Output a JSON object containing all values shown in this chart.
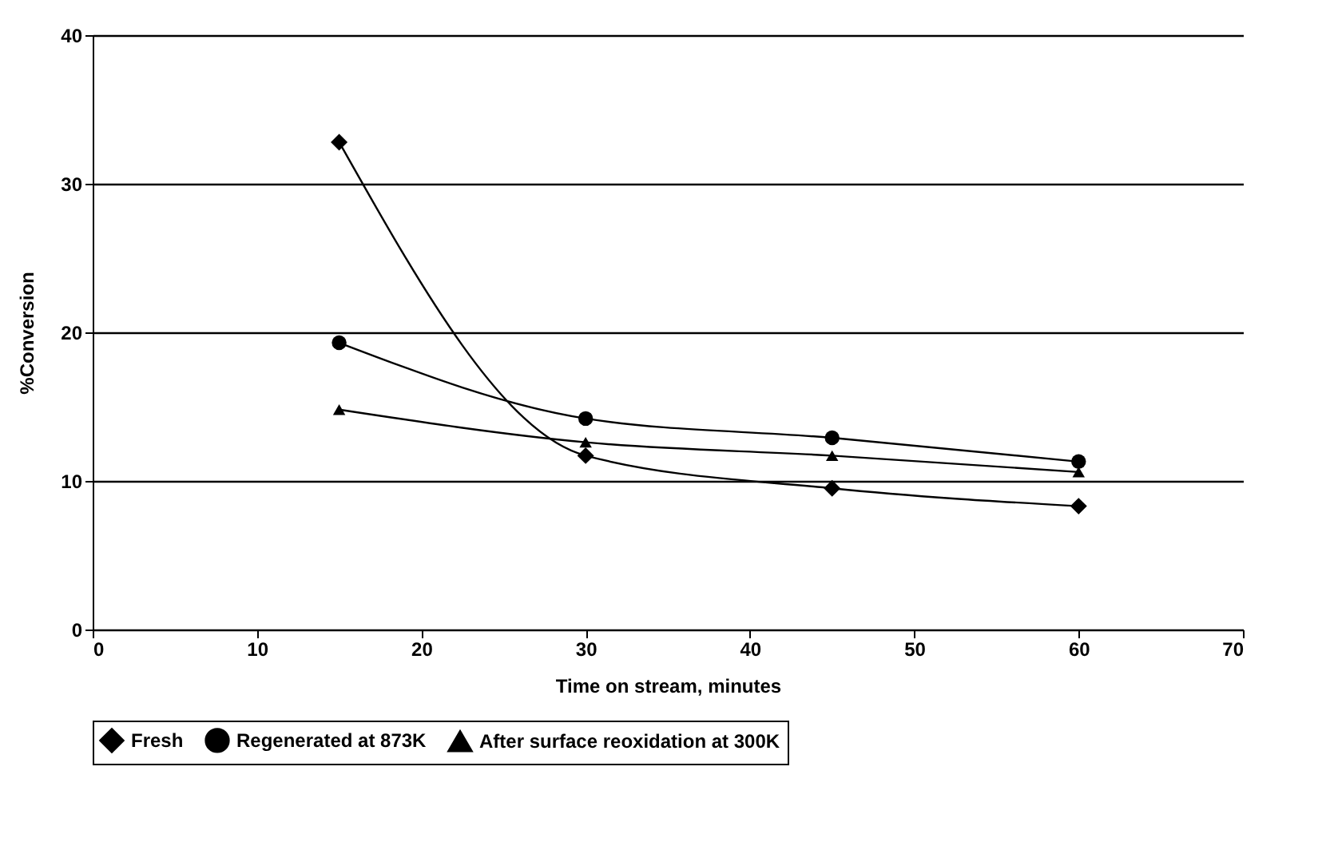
{
  "chart_data": {
    "type": "line",
    "xlabel": "Time on stream, minutes",
    "ylabel": "%Conversion",
    "xlim": [
      0,
      70
    ],
    "xticks": [
      0,
      10,
      20,
      30,
      40,
      50,
      60,
      70
    ],
    "ylim": [
      0,
      40
    ],
    "yticks": [
      0,
      10,
      20,
      30,
      40
    ],
    "grid": "y",
    "legend": "bottom",
    "x": [
      15,
      30,
      45,
      60
    ],
    "series": [
      {
        "name": "Fresh",
        "color": "#000000",
        "marker": "diamond",
        "values": [
          32.8,
          11.7,
          9.5,
          8.3
        ]
      },
      {
        "name": "Regenerated at 873K",
        "color": "#000000",
        "marker": "circle",
        "values": [
          19.3,
          14.2,
          12.9,
          11.3
        ]
      },
      {
        "name": "After surface reoxidation at 300K",
        "color": "#000000",
        "marker": "triangle",
        "values": [
          14.8,
          12.6,
          11.7,
          10.6
        ]
      }
    ]
  }
}
